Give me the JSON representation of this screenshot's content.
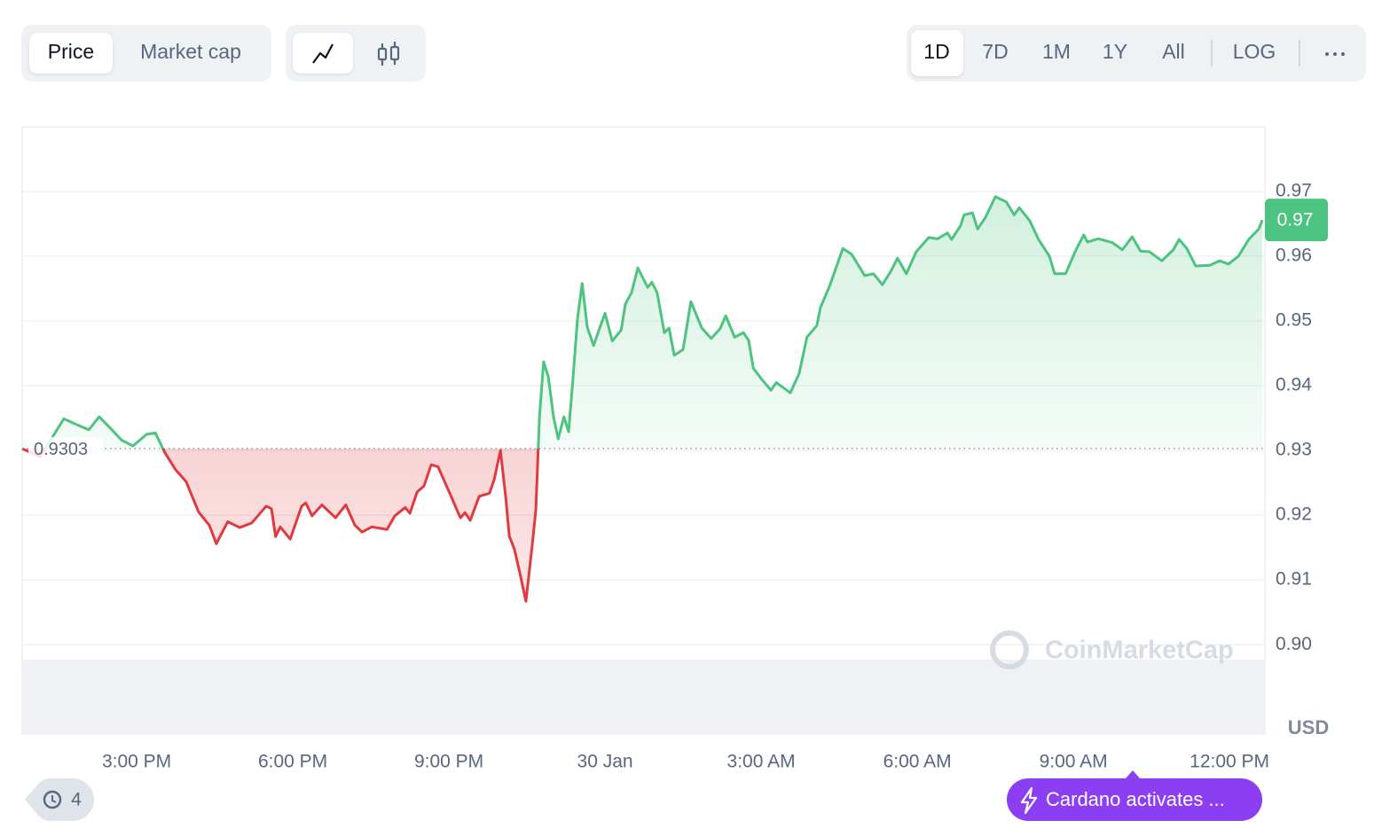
{
  "toolbar": {
    "view_tabs": [
      "Price",
      "Market cap"
    ],
    "range_tabs": [
      "1D",
      "7D",
      "1M",
      "1Y",
      "All"
    ],
    "scale_tab": "LOG"
  },
  "chart_data": {
    "type": "line",
    "x": [
      12.8,
      13.14,
      13.43,
      13.6,
      13.82,
      14.08,
      14.28,
      14.5,
      14.71,
      14.93,
      15.19,
      15.36,
      15.54,
      15.75,
      15.95,
      16.19,
      16.4,
      16.53,
      16.75,
      16.98,
      17.21,
      17.49,
      17.59,
      17.67,
      17.76,
      17.95,
      18.17,
      18.25,
      18.37,
      18.56,
      18.82,
      19.02,
      19.19,
      19.33,
      19.52,
      19.81,
      19.96,
      20.16,
      20.25,
      20.39,
      20.52,
      20.66,
      20.79,
      21.0,
      21.22,
      21.31,
      21.41,
      21.58,
      21.78,
      21.87,
      21.99,
      22.09,
      22.16,
      22.26,
      22.36,
      22.48,
      22.6,
      22.67,
      22.74,
      22.82,
      22.91,
      23.01,
      23.1,
      23.21,
      23.3,
      23.38,
      23.47,
      23.56,
      23.66,
      23.78,
      23.9,
      24.0,
      24.14,
      24.31,
      24.39,
      24.51,
      24.63,
      24.82,
      24.9,
      25.0,
      25.14,
      25.23,
      25.33,
      25.5,
      25.65,
      25.86,
      26.04,
      26.21,
      26.32,
      26.49,
      26.66,
      26.76,
      26.85,
      27.0,
      27.19,
      27.29,
      27.56,
      27.73,
      27.88,
      28.07,
      28.14,
      28.31,
      28.57,
      28.74,
      28.99,
      29.16,
      29.33,
      29.5,
      29.62,
      29.79,
      29.98,
      30.22,
      30.39,
      30.58,
      30.66,
      30.83,
      30.9,
      31.06,
      31.16,
      31.31,
      31.5,
      31.71,
      31.86,
      31.96,
      32.16,
      32.33,
      32.54,
      32.64,
      32.85,
      33.05,
      33.2,
      33.27,
      33.48,
      33.75,
      33.94,
      34.13,
      34.29,
      34.46,
      34.7,
      34.92,
      35.03,
      35.18,
      35.35,
      35.62,
      35.81,
      35.98,
      36.17,
      36.37,
      36.56,
      36.63
    ],
    "values": [
      0.9303,
      0.929,
      0.9327,
      0.9349,
      0.9341,
      0.9332,
      0.9352,
      0.9334,
      0.9316,
      0.9307,
      0.9325,
      0.9327,
      0.9297,
      0.927,
      0.9252,
      0.9205,
      0.9184,
      0.9156,
      0.919,
      0.9181,
      0.9188,
      0.9214,
      0.921,
      0.9167,
      0.9182,
      0.9163,
      0.9214,
      0.9219,
      0.9199,
      0.9216,
      0.9196,
      0.9216,
      0.9185,
      0.9174,
      0.9182,
      0.9178,
      0.9199,
      0.9212,
      0.9203,
      0.9236,
      0.9245,
      0.9278,
      0.9275,
      0.9237,
      0.9196,
      0.9204,
      0.9192,
      0.9229,
      0.9234,
      0.9255,
      0.93,
      0.9229,
      0.9168,
      0.9147,
      0.9112,
      0.9067,
      0.9153,
      0.9208,
      0.9352,
      0.9437,
      0.9414,
      0.9352,
      0.9318,
      0.9352,
      0.9329,
      0.9407,
      0.9503,
      0.9558,
      0.949,
      0.9462,
      0.949,
      0.9512,
      0.9469,
      0.9486,
      0.9526,
      0.9544,
      0.9582,
      0.9552,
      0.956,
      0.9544,
      0.9482,
      0.9489,
      0.9447,
      0.9456,
      0.953,
      0.9489,
      0.9473,
      0.9488,
      0.9508,
      0.9475,
      0.9482,
      0.947,
      0.9427,
      0.9411,
      0.9393,
      0.9405,
      0.9389,
      0.9419,
      0.9475,
      0.9493,
      0.9521,
      0.9553,
      0.9612,
      0.9603,
      0.957,
      0.9573,
      0.9556,
      0.9578,
      0.9597,
      0.9573,
      0.9607,
      0.9629,
      0.9627,
      0.9636,
      0.9626,
      0.9647,
      0.9664,
      0.9667,
      0.9642,
      0.966,
      0.9692,
      0.9684,
      0.9664,
      0.9675,
      0.9655,
      0.9626,
      0.96,
      0.9573,
      0.9573,
      0.961,
      0.9633,
      0.9622,
      0.9627,
      0.9621,
      0.961,
      0.963,
      0.9608,
      0.9607,
      0.9593,
      0.961,
      0.9626,
      0.9612,
      0.9585,
      0.9586,
      0.9593,
      0.9588,
      0.96,
      0.9626,
      0.9642,
      0.9656
    ],
    "color_up": "#4cc37f",
    "color_down": "#e0393e",
    "baseline": 0.9303,
    "price_tag": {
      "value": 0.9656,
      "label": "0.97"
    },
    "xlim": [
      12.8,
      36.68
    ],
    "xticks": [
      {
        "value": 15,
        "label": "3:00 PM"
      },
      {
        "value": 18,
        "label": "6:00 PM"
      },
      {
        "value": 21,
        "label": "9:00 PM"
      },
      {
        "value": 24,
        "label": "30 Jan"
      },
      {
        "value": 27,
        "label": "3:00 AM"
      },
      {
        "value": 30,
        "label": "6:00 AM"
      },
      {
        "value": 33,
        "label": "9:00 AM"
      },
      {
        "value": 36,
        "label": "12:00 PM"
      }
    ],
    "ylim": [
      0.8862,
      0.98
    ],
    "yticks": [
      {
        "value": 0.9,
        "label": "0.90"
      },
      0.91,
      0.92,
      0.93,
      0.94,
      0.95,
      0.96,
      0.97
    ],
    "grid": true,
    "currency": "USD",
    "watermark": "CoinMarketCap"
  },
  "footer": {
    "history_count": 4,
    "news": "Cardano activates ..."
  }
}
